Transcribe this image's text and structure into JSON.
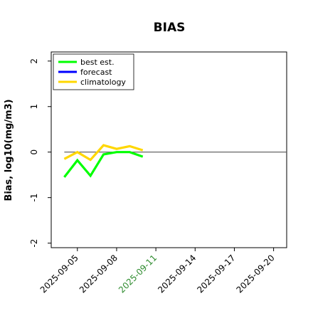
{
  "chart_data": {
    "type": "line",
    "title": "BIAS",
    "xlabel": "",
    "ylabel": "Bias, log10(mg/m3)",
    "xlim": [
      "2025-09-03",
      "2025-09-21"
    ],
    "ylim": [
      -2.1,
      2.2
    ],
    "yticks": [
      -2,
      -1,
      0,
      1,
      2
    ],
    "xticks": [
      {
        "date": "2025-09-05",
        "label": "2025-09-05",
        "color": "#000000"
      },
      {
        "date": "2025-09-08",
        "label": "2025-09-08",
        "color": "#000000"
      },
      {
        "date": "2025-09-11",
        "label": "2025-09-11",
        "color": "#2e8b2e"
      },
      {
        "date": "2025-09-14",
        "label": "2025-09-14",
        "color": "#000000"
      },
      {
        "date": "2025-09-17",
        "label": "2025-09-17",
        "color": "#000000"
      },
      {
        "date": "2025-09-20",
        "label": "2025-09-20",
        "color": "#000000"
      }
    ],
    "x_dates": [
      "2025-09-04",
      "2025-09-05",
      "2025-09-06",
      "2025-09-07",
      "2025-09-08",
      "2025-09-09",
      "2025-09-10"
    ],
    "series": [
      {
        "name": "best est.",
        "color": "#00ff00",
        "values": [
          -0.55,
          -0.18,
          -0.52,
          -0.05,
          0.0,
          0.0,
          -0.1
        ]
      },
      {
        "name": "forecast",
        "color": "#0000ff",
        "values": []
      },
      {
        "name": "climatology",
        "color": "#ffd700",
        "values": [
          -0.15,
          0.0,
          -0.17,
          0.15,
          0.07,
          0.13,
          0.04
        ]
      }
    ],
    "reference_line": {
      "y": 0,
      "x_from": "2025-09-04",
      "x_to": "2025-09-21",
      "color": "#555555"
    },
    "legend": "top-left",
    "grid": false
  }
}
